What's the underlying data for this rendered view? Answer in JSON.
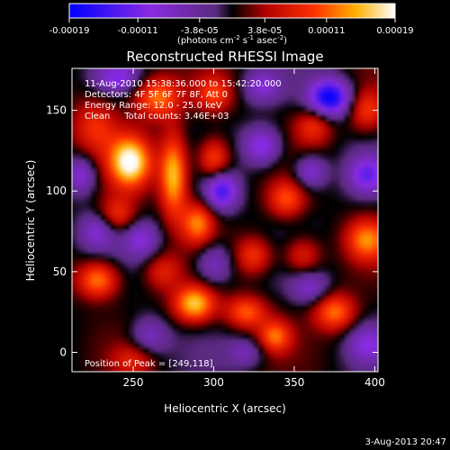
{
  "chart_data": {
    "type": "heatmap",
    "title": "Reconstructed RHESSI Image",
    "xlabel": "Heliocentric X (arcsec)",
    "ylabel": "Heliocentric Y (arcsec)",
    "xlim": [
      212,
      402
    ],
    "ylim": [
      -12,
      176
    ],
    "x_ticks": [
      250,
      300,
      350,
      400
    ],
    "y_ticks": [
      0,
      50,
      100,
      150
    ],
    "colorbar": {
      "range": [
        -0.00019,
        0.00019
      ],
      "ticks": [
        "-0.00019",
        "-0.00011",
        "-3.8e-05",
        "3.8e-05",
        "0.00011",
        "0.00019"
      ],
      "tick_values": [
        -0.00019,
        -0.00011,
        -3.8e-05,
        3.8e-05,
        0.00011,
        0.00019
      ],
      "unit_main": "(photons cm",
      "unit_sup1": "-2",
      "unit_mid": " s",
      "unit_sup2": "-1",
      "unit_end": " asec",
      "unit_sup3": "-2",
      "unit_close": ")"
    },
    "info_lines": [
      "11-Aug-2010 15:38:36.000 to 15:42:20.000",
      "Detectors: 4F 5F 6F 7F 8F, Att 0",
      "Energy Range: 12.0 - 25.0 keV",
      "Clean     Total counts: 3.46E+03"
    ],
    "peak_label": "Position of Peak = [249,118]",
    "peak": [
      249,
      118
    ],
    "blobs": [
      {
        "x": 248,
        "y": 118,
        "v": 0.00019,
        "sx": 9,
        "sy": 11
      },
      {
        "x": 240,
        "y": 85,
        "v": 9e-05,
        "sx": 8,
        "sy": 8
      },
      {
        "x": 226,
        "y": 140,
        "v": 8e-05,
        "sx": 10,
        "sy": 12
      },
      {
        "x": 275,
        "y": 110,
        "v": 0.00016,
        "sx": 6,
        "sy": 18
      },
      {
        "x": 265,
        "y": 158,
        "v": 0.00012,
        "sx": 10,
        "sy": 9
      },
      {
        "x": 300,
        "y": 160,
        "v": 9e-05,
        "sx": 8,
        "sy": 8
      },
      {
        "x": 300,
        "y": 120,
        "v": 0.00011,
        "sx": 7,
        "sy": 9
      },
      {
        "x": 290,
        "y": 80,
        "v": 0.00012,
        "sx": 7,
        "sy": 9
      },
      {
        "x": 228,
        "y": 45,
        "v": 0.00013,
        "sx": 9,
        "sy": 8
      },
      {
        "x": 288,
        "y": 30,
        "v": 0.00016,
        "sx": 9,
        "sy": 8
      },
      {
        "x": 320,
        "y": 25,
        "v": 0.00011,
        "sx": 9,
        "sy": 7
      },
      {
        "x": 338,
        "y": 10,
        "v": 0.00011,
        "sx": 7,
        "sy": 7
      },
      {
        "x": 325,
        "y": 60,
        "v": 9e-05,
        "sx": 8,
        "sy": 8
      },
      {
        "x": 345,
        "y": 95,
        "v": 0.0001,
        "sx": 8,
        "sy": 8
      },
      {
        "x": 362,
        "y": 140,
        "v": 8e-05,
        "sx": 8,
        "sy": 8
      },
      {
        "x": 395,
        "y": 70,
        "v": 0.00012,
        "sx": 9,
        "sy": 9
      },
      {
        "x": 375,
        "y": 25,
        "v": 0.00012,
        "sx": 9,
        "sy": 8
      },
      {
        "x": 355,
        "y": 60,
        "v": 8e-05,
        "sx": 8,
        "sy": 8
      },
      {
        "x": 395,
        "y": 150,
        "v": 9e-05,
        "sx": 8,
        "sy": 9
      },
      {
        "x": 250,
        "y": -5,
        "v": 6e-05,
        "sx": 9,
        "sy": 7
      },
      {
        "x": 268,
        "y": 50,
        "v": 7e-05,
        "sx": 8,
        "sy": 8
      },
      {
        "x": 372,
        "y": 158,
        "v": -0.00019,
        "sx": 9,
        "sy": 8
      },
      {
        "x": 305,
        "y": 100,
        "v": -0.00014,
        "sx": 7,
        "sy": 8
      },
      {
        "x": 240,
        "y": 170,
        "v": -9e-05,
        "sx": 9,
        "sy": 6
      },
      {
        "x": 330,
        "y": 128,
        "v": -0.00011,
        "sx": 8,
        "sy": 8
      },
      {
        "x": 360,
        "y": 112,
        "v": -9e-05,
        "sx": 7,
        "sy": 7
      },
      {
        "x": 395,
        "y": 110,
        "v": -0.00011,
        "sx": 8,
        "sy": 8
      },
      {
        "x": 228,
        "y": 75,
        "v": -8e-05,
        "sx": 8,
        "sy": 8
      },
      {
        "x": 255,
        "y": 70,
        "v": -8e-05,
        "sx": 8,
        "sy": 8
      },
      {
        "x": 300,
        "y": 55,
        "v": -8e-05,
        "sx": 8,
        "sy": 9
      },
      {
        "x": 260,
        "y": 10,
        "v": -7e-05,
        "sx": 8,
        "sy": 8
      },
      {
        "x": 360,
        "y": 40,
        "v": -7e-05,
        "sx": 8,
        "sy": 7
      },
      {
        "x": 330,
        "y": 165,
        "v": -8e-05,
        "sx": 8,
        "sy": 7
      },
      {
        "x": 395,
        "y": 5,
        "v": -8e-05,
        "sx": 8,
        "sy": 8
      },
      {
        "x": 218,
        "y": 110,
        "v": -9e-05,
        "sx": 6,
        "sy": 8
      },
      {
        "x": 320,
        "y": 0,
        "v": -6e-05,
        "sx": 8,
        "sy": 6
      }
    ]
  },
  "footer": {
    "timestamp": "3-Aug-2013 20:47"
  }
}
